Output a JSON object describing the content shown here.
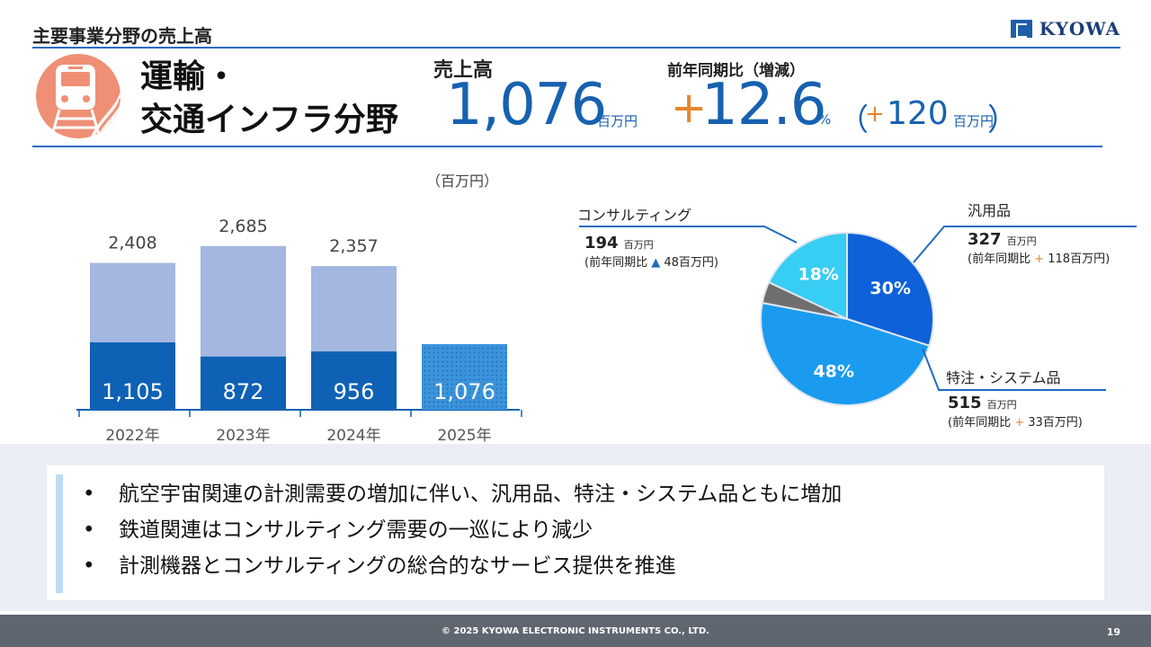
{
  "header": {
    "title": "主要事業分野の売上高",
    "logo": "KYOWA"
  },
  "sector": {
    "title_line1": "運輸・",
    "title_line2": "交通インフラ分野",
    "icon": "train-icon"
  },
  "sales": {
    "label": "売上高",
    "value": "1,076",
    "unit": "百万円"
  },
  "yoy": {
    "label": "前年同期比（増減）",
    "sign": "+",
    "value": "12.6",
    "unit": "%",
    "paren_open": "（",
    "amount_sign": "+",
    "amount": "120",
    "amount_unit": "百万円",
    "paren_close": "）"
  },
  "colors": {
    "accent": "#1761b0",
    "orange": "#e8852c",
    "bar_light": "#a3b7e0",
    "bar_dark": "#0e61b5",
    "bar_2025": "#3b93db"
  },
  "chart_data": [
    {
      "type": "bar",
      "unit_label": "（百万円）",
      "categories": [
        "2022年",
        "2023年",
        "2024年",
        "2025年"
      ],
      "totals": [
        2408,
        2685,
        2357,
        null
      ],
      "total_labels": [
        "2,408",
        "2,685",
        "2,357",
        ""
      ],
      "series": [
        {
          "name": "",
          "values": [
            1105,
            872,
            956,
            1076
          ],
          "labels": [
            "1,105",
            "872",
            "956",
            "1,076"
          ]
        }
      ],
      "ylim": [
        0,
        2800
      ]
    },
    {
      "type": "pie",
      "slices": [
        {
          "name": "汎用品",
          "value": 30,
          "label": "30%",
          "color": "#0e61d8",
          "amount": "327",
          "amount_unit": "百万円",
          "yoy_prefix": "(前年同期比",
          "yoy_sign": "+",
          "yoy_value": "118百万円)"
        },
        {
          "name": "特注・システム品",
          "value": 48,
          "label": "48%",
          "color": "#1a9bf0",
          "amount": "515",
          "amount_unit": "百万円",
          "yoy_prefix": "(前年同期比",
          "yoy_sign": "+",
          "yoy_value": "33百万円)"
        },
        {
          "name": "",
          "value": 4,
          "label": "",
          "color": "#6f6f6f"
        },
        {
          "name": "コンサルティング",
          "value": 18,
          "label": "18%",
          "color": "#38cdf2",
          "amount": "194",
          "amount_unit": "百万円",
          "yoy_prefix": "(前年同期比",
          "yoy_sign": "▲",
          "yoy_value": "48百万円)"
        }
      ]
    }
  ],
  "bullets": [
    "航空宇宙関連の計測需要の増加に伴い、汎用品、特注・システム品ともに増加",
    "鉄道関連はコンサルティング需要の一巡により減少",
    "計測機器とコンサルティングの総合的なサービス提供を推進"
  ],
  "footer": {
    "copyright": "© 2025 KYOWA ELECTRONIC INSTRUMENTS CO., LTD.",
    "page": "19"
  }
}
